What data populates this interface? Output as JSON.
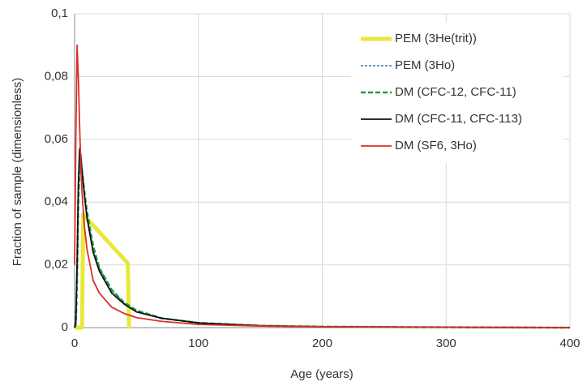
{
  "chart_data": {
    "type": "line",
    "x_label": "Age (years)",
    "y_label": "Fraction of sample (dimensionless)",
    "xlim": [
      0,
      400
    ],
    "xticks": [
      0,
      100,
      200,
      300,
      400
    ],
    "ylim": [
      0,
      0.1
    ],
    "yticks": [
      0,
      {
        "value": 0.02,
        "label": "0,02"
      },
      {
        "value": 0.04,
        "label": "0,04"
      },
      {
        "value": 0.06,
        "label": "0,06"
      },
      {
        "value": 0.08,
        "label": "0,08"
      },
      {
        "value": 0.1,
        "label": "0,1"
      }
    ],
    "grid": true,
    "legend": "upper right",
    "series": [
      {
        "name": "PEM (3He(trit))",
        "color": "#e8e83a",
        "dash": "solid",
        "width": 5,
        "x": [
          0,
          6,
          7,
          43,
          44
        ],
        "values": [
          0,
          0,
          0.036,
          0.0205,
          0
        ]
      },
      {
        "name": "PEM (3Ho)",
        "color": "#2e75b6",
        "dash": "dotted",
        "width": 1.5,
        "x": [
          0,
          1,
          2,
          3,
          4,
          5,
          6,
          8,
          10,
          15,
          20,
          30,
          40,
          50,
          70,
          100,
          150,
          200,
          300,
          400
        ],
        "values": [
          0,
          0.001,
          0.016,
          0.041,
          0.051,
          0.052,
          0.049,
          0.042,
          0.036,
          0.025,
          0.019,
          0.012,
          0.0078,
          0.0053,
          0.003,
          0.0015,
          0.0006,
          0.0003,
          0.0001,
          0
        ]
      },
      {
        "name": "DM (CFC-12, CFC-11)",
        "color": "#1e9e3c",
        "dash": "dashed",
        "width": 2.5,
        "x": [
          0,
          1,
          2,
          3,
          4,
          5,
          6,
          8,
          10,
          15,
          20,
          30,
          40,
          50,
          70,
          100,
          150,
          200,
          300,
          400
        ],
        "values": [
          0,
          0.001,
          0.015,
          0.04,
          0.05,
          0.052,
          0.05,
          0.043,
          0.037,
          0.026,
          0.019,
          0.012,
          0.008,
          0.0055,
          0.003,
          0.0015,
          0.0006,
          0.0003,
          0.0001,
          0
        ]
      },
      {
        "name": "DM (CFC-11, CFC-113)",
        "color": "#111111",
        "dash": "solid",
        "width": 1.8,
        "x": [
          0,
          1,
          2,
          3,
          4,
          5,
          6,
          8,
          10,
          15,
          20,
          30,
          40,
          50,
          70,
          100,
          150,
          200,
          300,
          400
        ],
        "values": [
          0,
          0.002,
          0.02,
          0.045,
          0.057,
          0.055,
          0.05,
          0.042,
          0.035,
          0.024,
          0.018,
          0.011,
          0.0075,
          0.005,
          0.003,
          0.0015,
          0.0006,
          0.0003,
          0.0001,
          0
        ]
      },
      {
        "name": "DM (SF6, 3Ho)",
        "color": "#d9302a",
        "dash": "solid",
        "width": 1.8,
        "x": [
          0,
          1,
          2,
          3,
          4,
          5,
          6,
          8,
          10,
          15,
          20,
          30,
          40,
          50,
          70,
          100,
          150,
          200,
          300,
          400
        ],
        "values": [
          0.02,
          0.06,
          0.09,
          0.08,
          0.065,
          0.052,
          0.043,
          0.032,
          0.025,
          0.015,
          0.011,
          0.0065,
          0.0045,
          0.0032,
          0.002,
          0.001,
          0.0005,
          0.0003,
          0.0001,
          0
        ]
      }
    ]
  }
}
